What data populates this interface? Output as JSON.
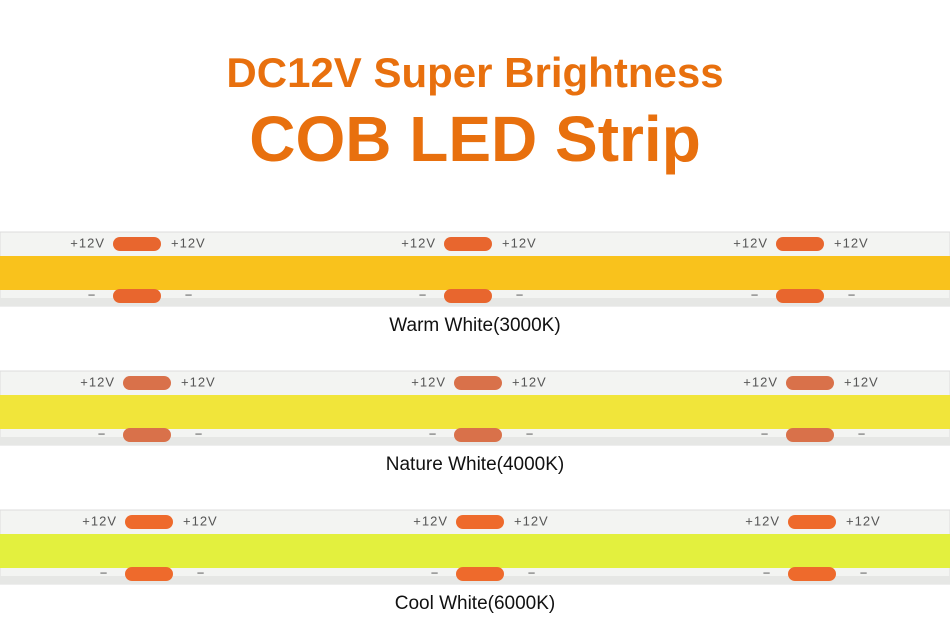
{
  "title": {
    "line1": "DC12V Super Brightness",
    "line2": "COB LED Strip"
  },
  "strips": [
    {
      "label": "Warm White(3000K)",
      "plus_label": "+12V",
      "minus_label": "−"
    },
    {
      "label": "Nature White(4000K)",
      "plus_label": "+12V",
      "minus_label": "−"
    },
    {
      "label": "Cool White(6000K)",
      "plus_label": "+12V",
      "minus_label": "−"
    }
  ]
}
